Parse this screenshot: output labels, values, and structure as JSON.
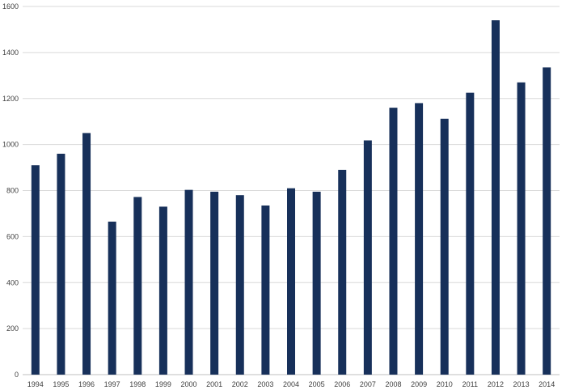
{
  "chart_data": {
    "type": "bar",
    "title": "",
    "xlabel": "",
    "ylabel": "",
    "categories": [
      "1994",
      "1995",
      "1996",
      "1997",
      "1998",
      "1999",
      "2000",
      "2001",
      "2002",
      "2003",
      "2004",
      "2005",
      "2006",
      "2007",
      "2008",
      "2009",
      "2010",
      "2011",
      "2012",
      "2013",
      "2014"
    ],
    "values": [
      910,
      960,
      1050,
      665,
      772,
      730,
      803,
      795,
      780,
      735,
      810,
      795,
      890,
      1018,
      1160,
      1180,
      1112,
      1225,
      1540,
      1270,
      1335
    ],
    "ylim": [
      0,
      1600
    ],
    "yticks": [
      0,
      200,
      400,
      600,
      800,
      1000,
      1200,
      1400,
      1600
    ],
    "grid": true,
    "legend": "none",
    "bar_color": "#17305a"
  }
}
